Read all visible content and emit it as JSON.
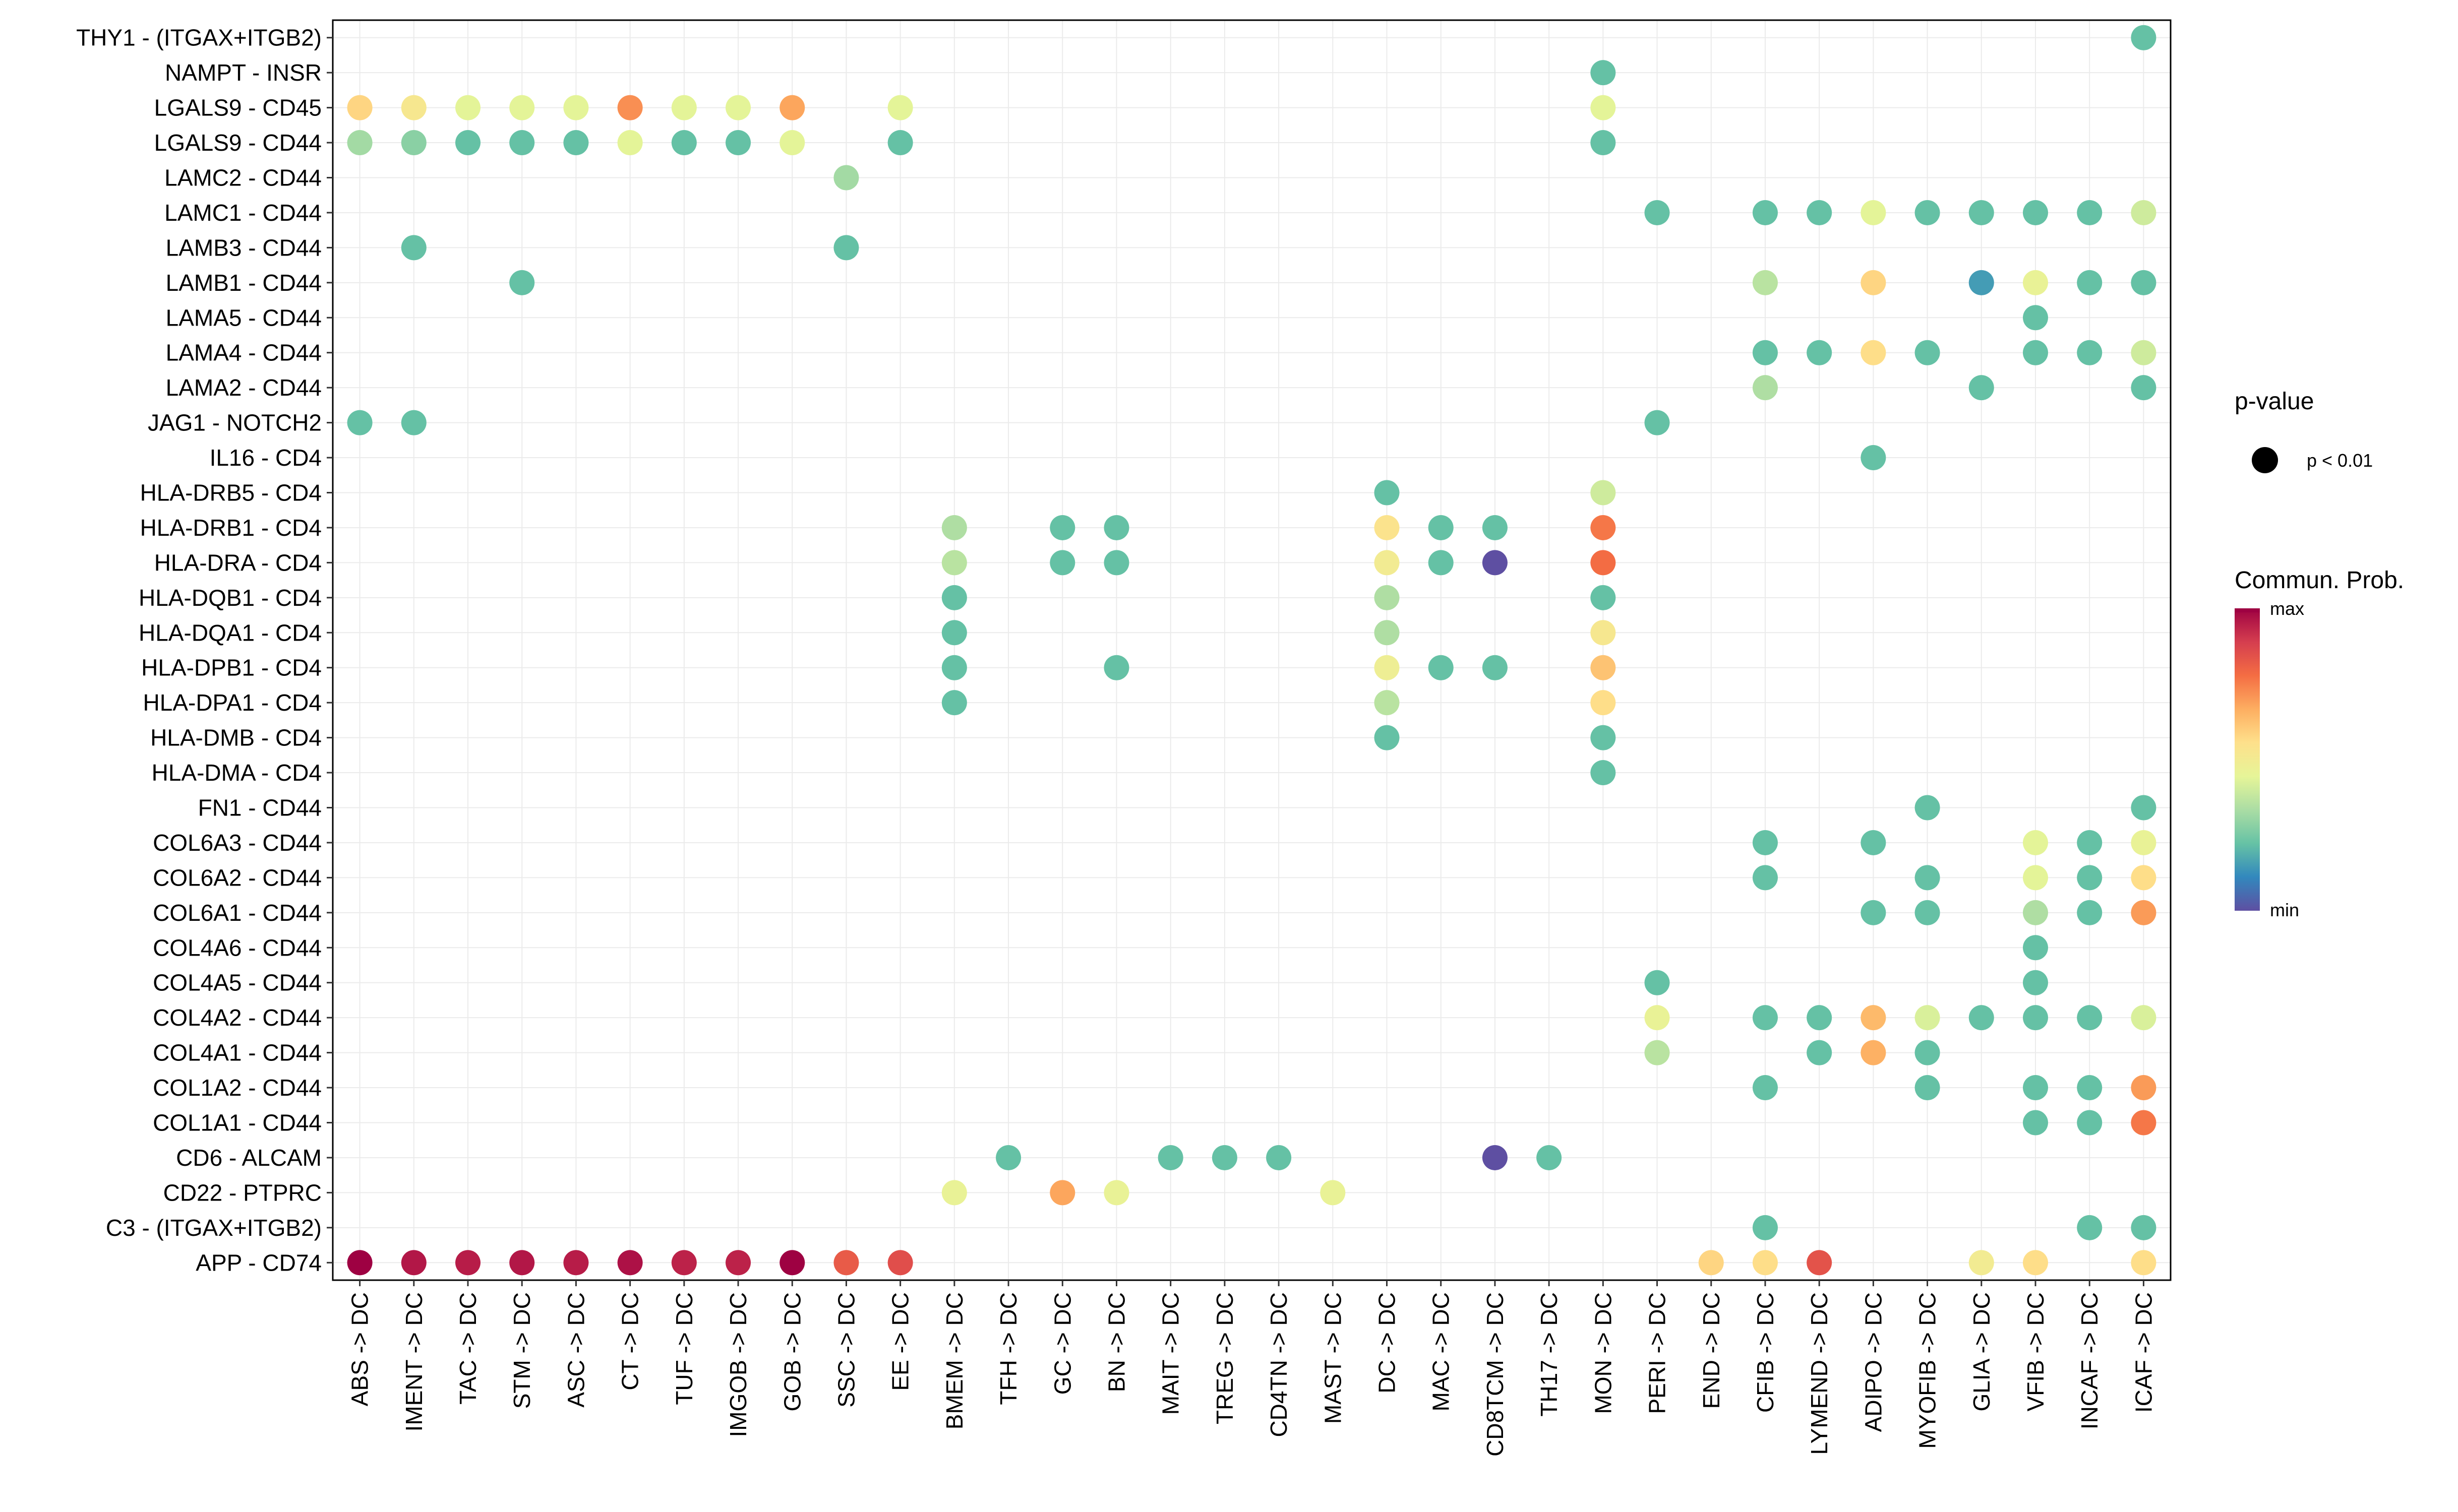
{
  "chart_data": {
    "type": "dot",
    "x_categories": [
      "ABS -> DC",
      "IMENT -> DC",
      "TAC -> DC",
      "STM -> DC",
      "ASC -> DC",
      "CT -> DC",
      "TUF -> DC",
      "IMGOB -> DC",
      "GOB -> DC",
      "SSC -> DC",
      "EE -> DC",
      "BMEM -> DC",
      "TFH -> DC",
      "GC -> DC",
      "BN -> DC",
      "MAIT -> DC",
      "TREG -> DC",
      "CD4TN -> DC",
      "MAST -> DC",
      "DC -> DC",
      "MAC -> DC",
      "CD8TCM -> DC",
      "TH17 -> DC",
      "MON -> DC",
      "PERI -> DC",
      "END -> DC",
      "CFIB -> DC",
      "LYMEND -> DC",
      "ADIPO -> DC",
      "MYOFIB -> DC",
      "GLIA -> DC",
      "VFIB -> DC",
      "INCAF -> DC",
      "ICAF -> DC"
    ],
    "y_categories": [
      "THY1 - (ITGAX+ITGB2)",
      "NAMPT - INSR",
      "LGALS9 - CD45",
      "LGALS9 - CD44",
      "LAMC2 - CD44",
      "LAMC1 - CD44",
      "LAMB3 - CD44",
      "LAMB1 - CD44",
      "LAMA5 - CD44",
      "LAMA4 - CD44",
      "LAMA2 - CD44",
      "JAG1 - NOTCH2",
      "IL16 - CD4",
      "HLA-DRB5 - CD4",
      "HLA-DRB1 - CD4",
      "HLA-DRA - CD4",
      "HLA-DQB1 - CD4",
      "HLA-DQA1 - CD4",
      "HLA-DPB1 - CD4",
      "HLA-DPA1 - CD4",
      "HLA-DMB - CD4",
      "HLA-DMA - CD4",
      "FN1 - CD44",
      "COL6A3 - CD44",
      "COL6A2 - CD44",
      "COL6A1 - CD44",
      "COL4A6 - CD44",
      "COL4A5 - CD44",
      "COL4A2 - CD44",
      "COL4A1 - CD44",
      "COL1A2 - CD44",
      "COL1A1 - CD44",
      "CD6 - ALCAM",
      "CD22 - PTPRC",
      "C3 - (ITGAX+ITGB2)",
      "APP - CD74"
    ],
    "value_scale": "communication probability, 0 = min, 1 = max",
    "points": [
      {
        "y": "THY1 - (ITGAX+ITGB2)",
        "x": "ICAF -> DC",
        "v": 0.22
      },
      {
        "y": "NAMPT - INSR",
        "x": "MON -> DC",
        "v": 0.22
      },
      {
        "y": "LGALS9 - CD45",
        "x": "ABS -> DC",
        "v": 0.58
      },
      {
        "y": "LGALS9 - CD45",
        "x": "IMENT -> DC",
        "v": 0.52
      },
      {
        "y": "LGALS9 - CD45",
        "x": "TAC -> DC",
        "v": 0.44
      },
      {
        "y": "LGALS9 - CD45",
        "x": "STM -> DC",
        "v": 0.44
      },
      {
        "y": "LGALS9 - CD45",
        "x": "ASC -> DC",
        "v": 0.44
      },
      {
        "y": "LGALS9 - CD45",
        "x": "CT -> DC",
        "v": 0.72
      },
      {
        "y": "LGALS9 - CD45",
        "x": "TUF -> DC",
        "v": 0.44
      },
      {
        "y": "LGALS9 - CD45",
        "x": "IMGOB -> DC",
        "v": 0.44
      },
      {
        "y": "LGALS9 - CD45",
        "x": "GOB -> DC",
        "v": 0.68
      },
      {
        "y": "LGALS9 - CD45",
        "x": "EE -> DC",
        "v": 0.44
      },
      {
        "y": "LGALS9 - CD45",
        "x": "MON -> DC",
        "v": 0.44
      },
      {
        "y": "LGALS9 - CD44",
        "x": "ABS -> DC",
        "v": 0.32
      },
      {
        "y": "LGALS9 - CD44",
        "x": "IMENT -> DC",
        "v": 0.28
      },
      {
        "y": "LGALS9 - CD44",
        "x": "TAC -> DC",
        "v": 0.22
      },
      {
        "y": "LGALS9 - CD44",
        "x": "STM -> DC",
        "v": 0.22
      },
      {
        "y": "LGALS9 - CD44",
        "x": "ASC -> DC",
        "v": 0.22
      },
      {
        "y": "LGALS9 - CD44",
        "x": "CT -> DC",
        "v": 0.44
      },
      {
        "y": "LGALS9 - CD44",
        "x": "TUF -> DC",
        "v": 0.22
      },
      {
        "y": "LGALS9 - CD44",
        "x": "IMGOB -> DC",
        "v": 0.22
      },
      {
        "y": "LGALS9 - CD44",
        "x": "GOB -> DC",
        "v": 0.44
      },
      {
        "y": "LGALS9 - CD44",
        "x": "EE -> DC",
        "v": 0.22
      },
      {
        "y": "LGALS9 - CD44",
        "x": "MON -> DC",
        "v": 0.22
      },
      {
        "y": "LAMC2 - CD44",
        "x": "SSC -> DC",
        "v": 0.32
      },
      {
        "y": "LAMC1 - CD44",
        "x": "PERI -> DC",
        "v": 0.22
      },
      {
        "y": "LAMC1 - CD44",
        "x": "CFIB -> DC",
        "v": 0.22
      },
      {
        "y": "LAMC1 - CD44",
        "x": "LYMEND -> DC",
        "v": 0.22
      },
      {
        "y": "LAMC1 - CD44",
        "x": "ADIPO -> DC",
        "v": 0.44
      },
      {
        "y": "LAMC1 - CD44",
        "x": "MYOFIB -> DC",
        "v": 0.22
      },
      {
        "y": "LAMC1 - CD44",
        "x": "GLIA -> DC",
        "v": 0.22
      },
      {
        "y": "LAMC1 - CD44",
        "x": "VFIB -> DC",
        "v": 0.22
      },
      {
        "y": "LAMC1 - CD44",
        "x": "INCAF -> DC",
        "v": 0.22
      },
      {
        "y": "LAMC1 - CD44",
        "x": "ICAF -> DC",
        "v": 0.4
      },
      {
        "y": "LAMB3 - CD44",
        "x": "IMENT -> DC",
        "v": 0.22
      },
      {
        "y": "LAMB3 - CD44",
        "x": "SSC -> DC",
        "v": 0.22
      },
      {
        "y": "LAMB1 - CD44",
        "x": "STM -> DC",
        "v": 0.22
      },
      {
        "y": "LAMB1 - CD44",
        "x": "CFIB -> DC",
        "v": 0.36
      },
      {
        "y": "LAMB1 - CD44",
        "x": "ADIPO -> DC",
        "v": 0.58
      },
      {
        "y": "LAMB1 - CD44",
        "x": "GLIA -> DC",
        "v": 0.15
      },
      {
        "y": "LAMB1 - CD44",
        "x": "VFIB -> DC",
        "v": 0.46
      },
      {
        "y": "LAMB1 - CD44",
        "x": "INCAF -> DC",
        "v": 0.22
      },
      {
        "y": "LAMB1 - CD44",
        "x": "ICAF -> DC",
        "v": 0.22
      },
      {
        "y": "LAMA5 - CD44",
        "x": "VFIB -> DC",
        "v": 0.22
      },
      {
        "y": "LAMA4 - CD44",
        "x": "CFIB -> DC",
        "v": 0.22
      },
      {
        "y": "LAMA4 - CD44",
        "x": "LYMEND -> DC",
        "v": 0.22
      },
      {
        "y": "LAMA4 - CD44",
        "x": "ADIPO -> DC",
        "v": 0.56
      },
      {
        "y": "LAMA4 - CD44",
        "x": "MYOFIB -> DC",
        "v": 0.22
      },
      {
        "y": "LAMA4 - CD44",
        "x": "VFIB -> DC",
        "v": 0.22
      },
      {
        "y": "LAMA4 - CD44",
        "x": "INCAF -> DC",
        "v": 0.22
      },
      {
        "y": "LAMA4 - CD44",
        "x": "ICAF -> DC",
        "v": 0.4
      },
      {
        "y": "LAMA2 - CD44",
        "x": "CFIB -> DC",
        "v": 0.34
      },
      {
        "y": "LAMA2 - CD44",
        "x": "GLIA -> DC",
        "v": 0.22
      },
      {
        "y": "LAMA2 - CD44",
        "x": "ICAF -> DC",
        "v": 0.22
      },
      {
        "y": "JAG1 - NOTCH2",
        "x": "ABS -> DC",
        "v": 0.22
      },
      {
        "y": "JAG1 - NOTCH2",
        "x": "IMENT -> DC",
        "v": 0.22
      },
      {
        "y": "JAG1 - NOTCH2",
        "x": "PERI -> DC",
        "v": 0.22
      },
      {
        "y": "IL16 - CD4",
        "x": "ADIPO -> DC",
        "v": 0.22
      },
      {
        "y": "HLA-DRB5 - CD4",
        "x": "DC -> DC",
        "v": 0.22
      },
      {
        "y": "HLA-DRB5 - CD4",
        "x": "MON -> DC",
        "v": 0.4
      },
      {
        "y": "HLA-DRB1 - CD4",
        "x": "BMEM -> DC",
        "v": 0.34
      },
      {
        "y": "HLA-DRB1 - CD4",
        "x": "GC -> DC",
        "v": 0.22
      },
      {
        "y": "HLA-DRB1 - CD4",
        "x": "BN -> DC",
        "v": 0.22
      },
      {
        "y": "HLA-DRB1 - CD4",
        "x": "DC -> DC",
        "v": 0.54
      },
      {
        "y": "HLA-DRB1 - CD4",
        "x": "MAC -> DC",
        "v": 0.22
      },
      {
        "y": "HLA-DRB1 - CD4",
        "x": "CD8TCM -> DC",
        "v": 0.22
      },
      {
        "y": "HLA-DRB1 - CD4",
        "x": "MON -> DC",
        "v": 0.76
      },
      {
        "y": "HLA-DRA - CD4",
        "x": "BMEM -> DC",
        "v": 0.36
      },
      {
        "y": "HLA-DRA - CD4",
        "x": "GC -> DC",
        "v": 0.22
      },
      {
        "y": "HLA-DRA - CD4",
        "x": "BN -> DC",
        "v": 0.22
      },
      {
        "y": "HLA-DRA - CD4",
        "x": "DC -> DC",
        "v": 0.5
      },
      {
        "y": "HLA-DRA - CD4",
        "x": "MAC -> DC",
        "v": 0.22
      },
      {
        "y": "HLA-DRA - CD4",
        "x": "CD8TCM -> DC",
        "v": 0.0
      },
      {
        "y": "HLA-DRA - CD4",
        "x": "MON -> DC",
        "v": 0.78
      },
      {
        "y": "HLA-DQB1 - CD4",
        "x": "BMEM -> DC",
        "v": 0.22
      },
      {
        "y": "HLA-DQB1 - CD4",
        "x": "DC -> DC",
        "v": 0.34
      },
      {
        "y": "HLA-DQB1 - CD4",
        "x": "MON -> DC",
        "v": 0.22
      },
      {
        "y": "HLA-DQA1 - CD4",
        "x": "BMEM -> DC",
        "v": 0.22
      },
      {
        "y": "HLA-DQA1 - CD4",
        "x": "DC -> DC",
        "v": 0.34
      },
      {
        "y": "HLA-DQA1 - CD4",
        "x": "MON -> DC",
        "v": 0.52
      },
      {
        "y": "HLA-DPB1 - CD4",
        "x": "BMEM -> DC",
        "v": 0.22
      },
      {
        "y": "HLA-DPB1 - CD4",
        "x": "BN -> DC",
        "v": 0.22
      },
      {
        "y": "HLA-DPB1 - CD4",
        "x": "DC -> DC",
        "v": 0.48
      },
      {
        "y": "HLA-DPB1 - CD4",
        "x": "MAC -> DC",
        "v": 0.22
      },
      {
        "y": "HLA-DPB1 - CD4",
        "x": "CD8TCM -> DC",
        "v": 0.22
      },
      {
        "y": "HLA-DPB1 - CD4",
        "x": "MON -> DC",
        "v": 0.62
      },
      {
        "y": "HLA-DPA1 - CD4",
        "x": "BMEM -> DC",
        "v": 0.22
      },
      {
        "y": "HLA-DPA1 - CD4",
        "x": "DC -> DC",
        "v": 0.36
      },
      {
        "y": "HLA-DPA1 - CD4",
        "x": "MON -> DC",
        "v": 0.56
      },
      {
        "y": "HLA-DMB - CD4",
        "x": "DC -> DC",
        "v": 0.22
      },
      {
        "y": "HLA-DMB - CD4",
        "x": "MON -> DC",
        "v": 0.22
      },
      {
        "y": "HLA-DMA - CD4",
        "x": "MON -> DC",
        "v": 0.22
      },
      {
        "y": "FN1 - CD44",
        "x": "MYOFIB -> DC",
        "v": 0.22
      },
      {
        "y": "FN1 - CD44",
        "x": "ICAF -> DC",
        "v": 0.22
      },
      {
        "y": "COL6A3 - CD44",
        "x": "CFIB -> DC",
        "v": 0.22
      },
      {
        "y": "COL6A3 - CD44",
        "x": "ADIPO -> DC",
        "v": 0.22
      },
      {
        "y": "COL6A3 - CD44",
        "x": "VFIB -> DC",
        "v": 0.44
      },
      {
        "y": "COL6A3 - CD44",
        "x": "INCAF -> DC",
        "v": 0.22
      },
      {
        "y": "COL6A3 - CD44",
        "x": "ICAF -> DC",
        "v": 0.46
      },
      {
        "y": "COL6A2 - CD44",
        "x": "CFIB -> DC",
        "v": 0.22
      },
      {
        "y": "COL6A2 - CD44",
        "x": "MYOFIB -> DC",
        "v": 0.22
      },
      {
        "y": "COL6A2 - CD44",
        "x": "VFIB -> DC",
        "v": 0.44
      },
      {
        "y": "COL6A2 - CD44",
        "x": "INCAF -> DC",
        "v": 0.22
      },
      {
        "y": "COL6A2 - CD44",
        "x": "ICAF -> DC",
        "v": 0.56
      },
      {
        "y": "COL6A1 - CD44",
        "x": "ADIPO -> DC",
        "v": 0.22
      },
      {
        "y": "COL6A1 - CD44",
        "x": "MYOFIB -> DC",
        "v": 0.22
      },
      {
        "y": "COL6A1 - CD44",
        "x": "VFIB -> DC",
        "v": 0.34
      },
      {
        "y": "COL6A1 - CD44",
        "x": "INCAF -> DC",
        "v": 0.22
      },
      {
        "y": "COL6A1 - CD44",
        "x": "ICAF -> DC",
        "v": 0.7
      },
      {
        "y": "COL4A6 - CD44",
        "x": "VFIB -> DC",
        "v": 0.22
      },
      {
        "y": "COL4A5 - CD44",
        "x": "PERI -> DC",
        "v": 0.22
      },
      {
        "y": "COL4A5 - CD44",
        "x": "VFIB -> DC",
        "v": 0.22
      },
      {
        "y": "COL4A2 - CD44",
        "x": "PERI -> DC",
        "v": 0.46
      },
      {
        "y": "COL4A2 - CD44",
        "x": "CFIB -> DC",
        "v": 0.22
      },
      {
        "y": "COL4A2 - CD44",
        "x": "LYMEND -> DC",
        "v": 0.22
      },
      {
        "y": "COL4A2 - CD44",
        "x": "ADIPO -> DC",
        "v": 0.64
      },
      {
        "y": "COL4A2 - CD44",
        "x": "MYOFIB -> DC",
        "v": 0.42
      },
      {
        "y": "COL4A2 - CD44",
        "x": "GLIA -> DC",
        "v": 0.22
      },
      {
        "y": "COL4A2 - CD44",
        "x": "VFIB -> DC",
        "v": 0.22
      },
      {
        "y": "COL4A2 - CD44",
        "x": "INCAF -> DC",
        "v": 0.22
      },
      {
        "y": "COL4A2 - CD44",
        "x": "ICAF -> DC",
        "v": 0.42
      },
      {
        "y": "COL4A1 - CD44",
        "x": "PERI -> DC",
        "v": 0.36
      },
      {
        "y": "COL4A1 - CD44",
        "x": "LYMEND -> DC",
        "v": 0.22
      },
      {
        "y": "COL4A1 - CD44",
        "x": "ADIPO -> DC",
        "v": 0.66
      },
      {
        "y": "COL4A1 - CD44",
        "x": "MYOFIB -> DC",
        "v": 0.22
      },
      {
        "y": "COL1A2 - CD44",
        "x": "CFIB -> DC",
        "v": 0.22
      },
      {
        "y": "COL1A2 - CD44",
        "x": "MYOFIB -> DC",
        "v": 0.22
      },
      {
        "y": "COL1A2 - CD44",
        "x": "VFIB -> DC",
        "v": 0.22
      },
      {
        "y": "COL1A2 - CD44",
        "x": "INCAF -> DC",
        "v": 0.22
      },
      {
        "y": "COL1A2 - CD44",
        "x": "ICAF -> DC",
        "v": 0.7
      },
      {
        "y": "COL1A1 - CD44",
        "x": "VFIB -> DC",
        "v": 0.22
      },
      {
        "y": "COL1A1 - CD44",
        "x": "INCAF -> DC",
        "v": 0.22
      },
      {
        "y": "COL1A1 - CD44",
        "x": "ICAF -> DC",
        "v": 0.76
      },
      {
        "y": "CD6 - ALCAM",
        "x": "TFH -> DC",
        "v": 0.22
      },
      {
        "y": "CD6 - ALCAM",
        "x": "MAIT -> DC",
        "v": 0.22
      },
      {
        "y": "CD6 - ALCAM",
        "x": "TREG -> DC",
        "v": 0.22
      },
      {
        "y": "CD6 - ALCAM",
        "x": "CD4TN -> DC",
        "v": 0.22
      },
      {
        "y": "CD6 - ALCAM",
        "x": "CD8TCM -> DC",
        "v": 0.0
      },
      {
        "y": "CD6 - ALCAM",
        "x": "TH17 -> DC",
        "v": 0.22
      },
      {
        "y": "CD22 - PTPRC",
        "x": "BMEM -> DC",
        "v": 0.46
      },
      {
        "y": "CD22 - PTPRC",
        "x": "GC -> DC",
        "v": 0.68
      },
      {
        "y": "CD22 - PTPRC",
        "x": "BN -> DC",
        "v": 0.46
      },
      {
        "y": "CD22 - PTPRC",
        "x": "MAST -> DC",
        "v": 0.46
      },
      {
        "y": "C3 - (ITGAX+ITGB2)",
        "x": "CFIB -> DC",
        "v": 0.22
      },
      {
        "y": "C3 - (ITGAX+ITGB2)",
        "x": "INCAF -> DC",
        "v": 0.22
      },
      {
        "y": "C3 - (ITGAX+ITGB2)",
        "x": "ICAF -> DC",
        "v": 0.22
      },
      {
        "y": "APP - CD74",
        "x": "ABS -> DC",
        "v": 1.0
      },
      {
        "y": "APP - CD74",
        "x": "IMENT -> DC",
        "v": 0.96
      },
      {
        "y": "APP - CD74",
        "x": "TAC -> DC",
        "v": 0.95
      },
      {
        "y": "APP - CD74",
        "x": "STM -> DC",
        "v": 0.96
      },
      {
        "y": "APP - CD74",
        "x": "ASC -> DC",
        "v": 0.95
      },
      {
        "y": "APP - CD74",
        "x": "CT -> DC",
        "v": 0.97
      },
      {
        "y": "APP - CD74",
        "x": "TUF -> DC",
        "v": 0.94
      },
      {
        "y": "APP - CD74",
        "x": "IMGOB -> DC",
        "v": 0.94
      },
      {
        "y": "APP - CD74",
        "x": "GOB -> DC",
        "v": 1.0
      },
      {
        "y": "APP - CD74",
        "x": "SSC -> DC",
        "v": 0.82
      },
      {
        "y": "APP - CD74",
        "x": "EE -> DC",
        "v": 0.85
      },
      {
        "y": "APP - CD74",
        "x": "END -> DC",
        "v": 0.58
      },
      {
        "y": "APP - CD74",
        "x": "CFIB -> DC",
        "v": 0.56
      },
      {
        "y": "APP - CD74",
        "x": "LYMEND -> DC",
        "v": 0.84
      },
      {
        "y": "APP - CD74",
        "x": "GLIA -> DC",
        "v": 0.5
      },
      {
        "y": "APP - CD74",
        "x": "VFIB -> DC",
        "v": 0.56
      },
      {
        "y": "APP - CD74",
        "x": "ICAF -> DC",
        "v": 0.56
      }
    ],
    "legend": {
      "pvalue_title": "p-value",
      "pvalue_label": "p < 0.01",
      "prob_title": "Commun. Prob.",
      "max_label": "max",
      "min_label": "min"
    },
    "colors": {
      "scale": [
        "#5E4FA2",
        "#3288BD",
        "#66C2A5",
        "#ABDDA4",
        "#E6F598",
        "#FEE08B",
        "#FDAE61",
        "#F46D43",
        "#D53E4F",
        "#9E0142"
      ],
      "dot_uniform": "#48A8A4",
      "grid": "#EBEBEB",
      "frame": "#000000"
    }
  }
}
